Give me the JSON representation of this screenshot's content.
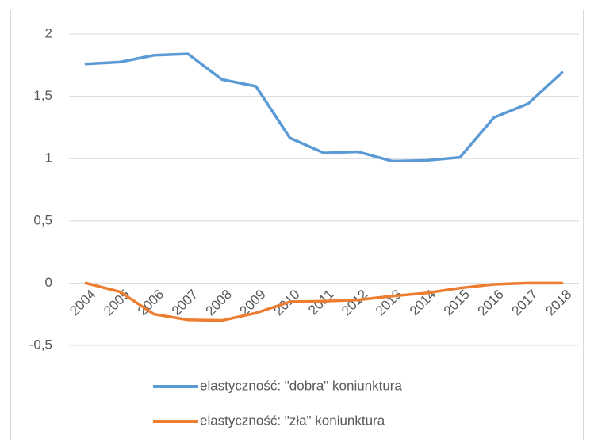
{
  "chart_data": {
    "type": "line",
    "categories": [
      "2004",
      "2005",
      "2006",
      "2007",
      "2008",
      "2009",
      "2010",
      "2011",
      "2012",
      "2013",
      "2014",
      "2015",
      "2016",
      "2017",
      "2018"
    ],
    "series": [
      {
        "name": "elastyczność: \"dobra\" koniunktura",
        "color": "#5b9bd5",
        "values": [
          1.76,
          1.775,
          1.83,
          1.84,
          1.635,
          1.58,
          1.165,
          1.045,
          1.055,
          0.98,
          0.985,
          1.01,
          1.33,
          1.44,
          1.69
        ]
      },
      {
        "name": "elastyczność: \"zła\" koniunktura",
        "color": "#ed7d31",
        "values": [
          0,
          -0.07,
          -0.25,
          -0.295,
          -0.3,
          -0.24,
          -0.15,
          -0.145,
          -0.135,
          -0.105,
          -0.08,
          -0.04,
          -0.01,
          0,
          0
        ]
      }
    ],
    "ylim": [
      -0.5,
      2
    ],
    "yticks": [
      {
        "value": -0.5,
        "label": "-0,5"
      },
      0,
      {
        "value": 0.5,
        "label": "0,5"
      },
      1,
      {
        "value": 1.5,
        "label": "1,5"
      },
      2
    ],
    "grid": true,
    "legend": "bottom"
  }
}
